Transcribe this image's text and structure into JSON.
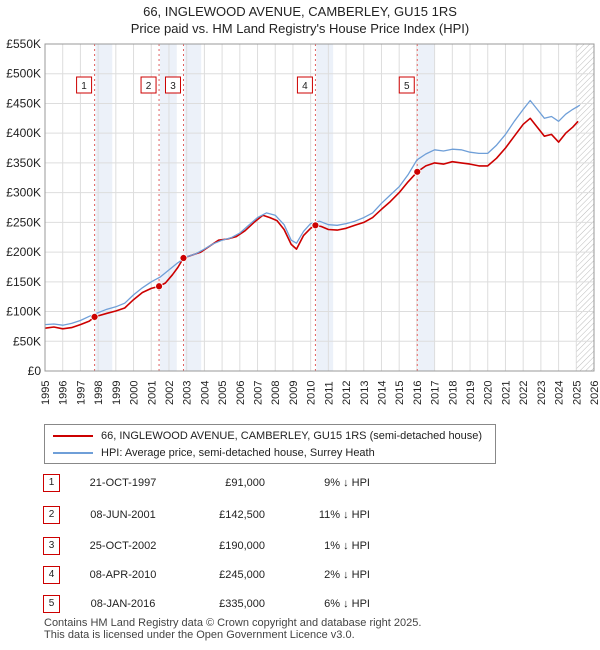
{
  "header": {
    "title": "66, INGLEWOOD AVENUE, CAMBERLEY, GU15 1RS",
    "subtitle": "Price paid vs. HM Land Registry's House Price Index (HPI)"
  },
  "colors": {
    "property": "#cc0000",
    "hpi": "#6f9fd8",
    "sale_band": "#dce6f4",
    "grid": "#dddddd"
  },
  "chart_data": {
    "type": "line",
    "title": "66, INGLEWOOD AVENUE, CAMBERLEY, GU15 1RS",
    "subtitle": "Price paid vs. HM Land Registry's House Price Index (HPI)",
    "xlabel": "",
    "ylabel": "",
    "xlim": [
      1995,
      2026
    ],
    "ylim": [
      0,
      550000
    ],
    "grid": true,
    "x_ticks": [
      "1995",
      "1996",
      "1997",
      "1998",
      "1999",
      "2000",
      "2001",
      "2002",
      "2003",
      "2004",
      "2005",
      "2006",
      "2007",
      "2008",
      "2009",
      "2010",
      "2011",
      "2012",
      "2013",
      "2014",
      "2015",
      "2016",
      "2017",
      "2018",
      "2019",
      "2020",
      "2021",
      "2022",
      "2023",
      "2024",
      "2025",
      "2026"
    ],
    "y_ticks": [
      {
        "value": 0,
        "label": "£0"
      },
      {
        "value": 50000,
        "label": "£50K"
      },
      {
        "value": 100000,
        "label": "£100K"
      },
      {
        "value": 150000,
        "label": "£150K"
      },
      {
        "value": 200000,
        "label": "£200K"
      },
      {
        "value": 250000,
        "label": "£250K"
      },
      {
        "value": 300000,
        "label": "£300K"
      },
      {
        "value": 350000,
        "label": "£350K"
      },
      {
        "value": 400000,
        "label": "£400K"
      },
      {
        "value": 450000,
        "label": "£450K"
      },
      {
        "value": 500000,
        "label": "£500K"
      },
      {
        "value": 550000,
        "label": "£550K"
      }
    ],
    "series": [
      {
        "name": "66, INGLEWOOD AVENUE, CAMBERLEY, GU15 1RS (semi-detached house)",
        "color": "#cc0000",
        "points": [
          [
            1995.0,
            72000
          ],
          [
            1995.5,
            74000
          ],
          [
            1996.0,
            71000
          ],
          [
            1996.5,
            73000
          ],
          [
            1997.0,
            78000
          ],
          [
            1997.5,
            84000
          ],
          [
            1997.8,
            91000
          ],
          [
            1998.5,
            97000
          ],
          [
            1999.0,
            101000
          ],
          [
            1999.5,
            106000
          ],
          [
            2000.0,
            120000
          ],
          [
            2000.5,
            132000
          ],
          [
            2001.0,
            139000
          ],
          [
            2001.44,
            142500
          ],
          [
            2001.8,
            148000
          ],
          [
            2002.2,
            162000
          ],
          [
            2002.5,
            174000
          ],
          [
            2002.82,
            190000
          ],
          [
            2003.3,
            195000
          ],
          [
            2003.8,
            200000
          ],
          [
            2004.3,
            210000
          ],
          [
            2004.8,
            220000
          ],
          [
            2005.3,
            222000
          ],
          [
            2005.8,
            226000
          ],
          [
            2006.3,
            236000
          ],
          [
            2006.8,
            250000
          ],
          [
            2007.3,
            262000
          ],
          [
            2007.7,
            258000
          ],
          [
            2008.1,
            253000
          ],
          [
            2008.5,
            238000
          ],
          [
            2008.9,
            213000
          ],
          [
            2009.2,
            205000
          ],
          [
            2009.6,
            228000
          ],
          [
            2010.0,
            240000
          ],
          [
            2010.27,
            245000
          ],
          [
            2010.6,
            243000
          ],
          [
            2011.0,
            238000
          ],
          [
            2011.5,
            237000
          ],
          [
            2012.0,
            240000
          ],
          [
            2012.5,
            245000
          ],
          [
            2013.0,
            250000
          ],
          [
            2013.5,
            258000
          ],
          [
            2014.0,
            272000
          ],
          [
            2014.5,
            285000
          ],
          [
            2015.0,
            300000
          ],
          [
            2015.5,
            318000
          ],
          [
            2016.02,
            335000
          ],
          [
            2016.5,
            345000
          ],
          [
            2017.0,
            350000
          ],
          [
            2017.5,
            348000
          ],
          [
            2018.0,
            352000
          ],
          [
            2018.5,
            350000
          ],
          [
            2019.0,
            348000
          ],
          [
            2019.5,
            345000
          ],
          [
            2020.0,
            345000
          ],
          [
            2020.5,
            358000
          ],
          [
            2021.0,
            375000
          ],
          [
            2021.5,
            395000
          ],
          [
            2022.0,
            415000
          ],
          [
            2022.4,
            425000
          ],
          [
            2022.8,
            410000
          ],
          [
            2023.2,
            395000
          ],
          [
            2023.6,
            398000
          ],
          [
            2024.0,
            385000
          ],
          [
            2024.4,
            400000
          ],
          [
            2024.8,
            410000
          ],
          [
            2025.1,
            420000
          ]
        ]
      },
      {
        "name": "HPI: Average price, semi-detached house, Surrey Heath",
        "color": "#6f9fd8",
        "points": [
          [
            1995.0,
            78000
          ],
          [
            1995.5,
            79000
          ],
          [
            1996.0,
            77000
          ],
          [
            1996.5,
            80000
          ],
          [
            1997.0,
            85000
          ],
          [
            1997.5,
            92000
          ],
          [
            1998.0,
            98000
          ],
          [
            1998.5,
            104000
          ],
          [
            1999.0,
            108000
          ],
          [
            1999.5,
            114000
          ],
          [
            2000.0,
            128000
          ],
          [
            2000.5,
            140000
          ],
          [
            2001.0,
            150000
          ],
          [
            2001.5,
            158000
          ],
          [
            2002.0,
            170000
          ],
          [
            2002.5,
            182000
          ],
          [
            2003.0,
            192000
          ],
          [
            2003.5,
            197000
          ],
          [
            2004.0,
            205000
          ],
          [
            2004.5,
            214000
          ],
          [
            2005.0,
            220000
          ],
          [
            2005.5,
            224000
          ],
          [
            2006.0,
            232000
          ],
          [
            2006.5,
            245000
          ],
          [
            2007.0,
            258000
          ],
          [
            2007.5,
            266000
          ],
          [
            2008.0,
            262000
          ],
          [
            2008.5,
            246000
          ],
          [
            2008.9,
            220000
          ],
          [
            2009.2,
            215000
          ],
          [
            2009.6,
            235000
          ],
          [
            2010.0,
            248000
          ],
          [
            2010.5,
            252000
          ],
          [
            2011.0,
            246000
          ],
          [
            2011.5,
            245000
          ],
          [
            2012.0,
            248000
          ],
          [
            2012.5,
            252000
          ],
          [
            2013.0,
            258000
          ],
          [
            2013.5,
            266000
          ],
          [
            2014.0,
            282000
          ],
          [
            2014.5,
            296000
          ],
          [
            2015.0,
            310000
          ],
          [
            2015.5,
            330000
          ],
          [
            2016.0,
            355000
          ],
          [
            2016.5,
            365000
          ],
          [
            2017.0,
            372000
          ],
          [
            2017.5,
            370000
          ],
          [
            2018.0,
            373000
          ],
          [
            2018.5,
            372000
          ],
          [
            2019.0,
            368000
          ],
          [
            2019.5,
            366000
          ],
          [
            2020.0,
            366000
          ],
          [
            2020.5,
            380000
          ],
          [
            2021.0,
            398000
          ],
          [
            2021.5,
            420000
          ],
          [
            2022.0,
            440000
          ],
          [
            2022.4,
            455000
          ],
          [
            2022.8,
            440000
          ],
          [
            2023.2,
            425000
          ],
          [
            2023.6,
            428000
          ],
          [
            2024.0,
            420000
          ],
          [
            2024.4,
            432000
          ],
          [
            2024.8,
            440000
          ],
          [
            2025.2,
            447000
          ]
        ]
      }
    ],
    "sales": [
      {
        "n": "1",
        "x": 1997.8,
        "value": 91000
      },
      {
        "n": "2",
        "x": 2001.44,
        "value": 142500
      },
      {
        "n": "3",
        "x": 2002.82,
        "value": 190000
      },
      {
        "n": "4",
        "x": 2010.27,
        "value": 245000
      },
      {
        "n": "5",
        "x": 2016.02,
        "value": 335000
      }
    ],
    "forecast_start": 2025.0
  },
  "legend": {
    "property_label": "66, INGLEWOOD AVENUE, CAMBERLEY, GU15 1RS (semi-detached house)",
    "hpi_label": "HPI: Average price, semi-detached house, Surrey Heath"
  },
  "sales_table": [
    {
      "n": "1",
      "date": "21-OCT-1997",
      "price": "£91,000",
      "hpi": "9% ↓ HPI"
    },
    {
      "n": "2",
      "date": "08-JUN-2001",
      "price": "£142,500",
      "hpi": "11% ↓ HPI"
    },
    {
      "n": "3",
      "date": "25-OCT-2002",
      "price": "£190,000",
      "hpi": "1% ↓ HPI"
    },
    {
      "n": "4",
      "date": "08-APR-2010",
      "price": "£245,000",
      "hpi": "2% ↓ HPI"
    },
    {
      "n": "5",
      "date": "08-JAN-2016",
      "price": "£335,000",
      "hpi": "6% ↓ HPI"
    }
  ],
  "footer": {
    "line1": "Contains HM Land Registry data © Crown copyright and database right 2025.",
    "line2": "This data is licensed under the Open Government Licence v3.0."
  }
}
